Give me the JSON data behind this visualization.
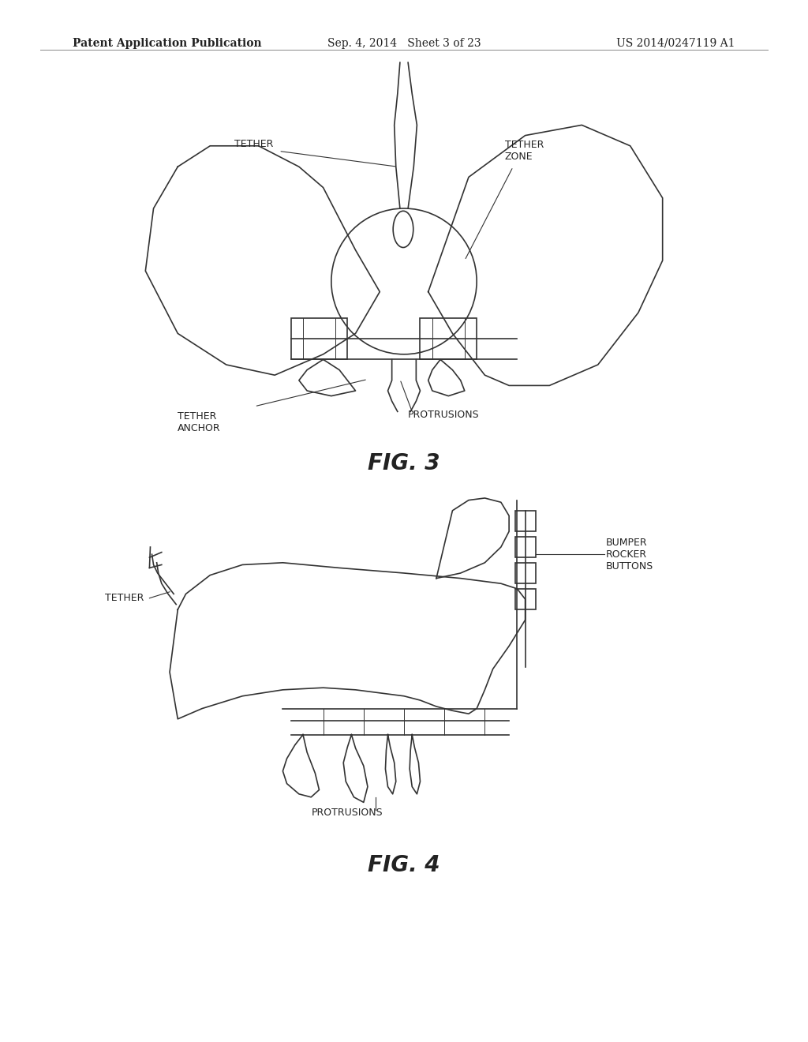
{
  "bg_color": "#ffffff",
  "header_left": "Patent Application Publication",
  "header_center": "Sep. 4, 2014   Sheet 3 of 23",
  "header_right": "US 2014/0247119 A1",
  "fig3_label": "FIG. 3",
  "fig4_label": "FIG. 4",
  "line_color": "#333333",
  "text_color": "#222222",
  "header_fontsize": 10,
  "label_fontsize": 9,
  "fig_label_fontsize": 20
}
